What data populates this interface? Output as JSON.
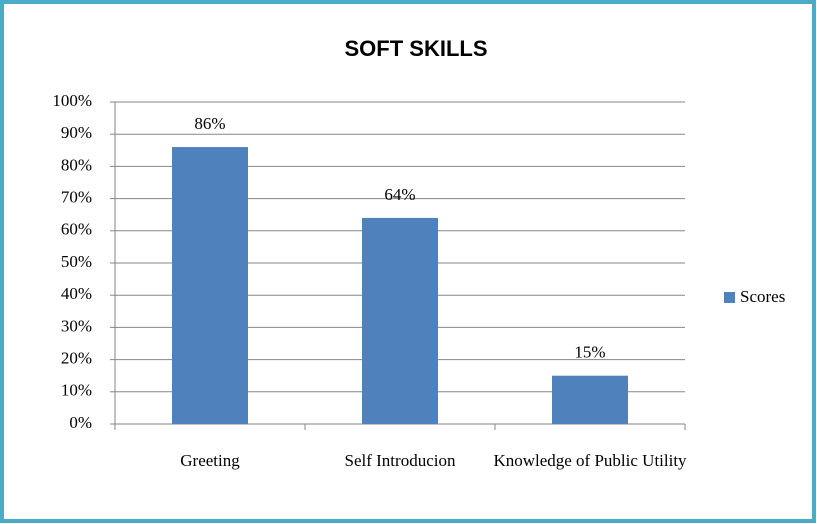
{
  "chart_data": {
    "type": "bar",
    "title": "SOFT SKILLS",
    "categories": [
      "Greeting",
      "Self Introducion",
      "Knowledge of Public Utility"
    ],
    "series": [
      {
        "name": "Scores",
        "color": "#4f81bd",
        "values": [
          86,
          64,
          15
        ],
        "value_labels": [
          "86%",
          "64%",
          "15%"
        ]
      }
    ],
    "ylim": [
      0,
      100
    ],
    "yticks": [
      {
        "value": 0,
        "label": "0%"
      },
      {
        "value": 10,
        "label": "10%"
      },
      {
        "value": 20,
        "label": "20%"
      },
      {
        "value": 30,
        "label": "30%"
      },
      {
        "value": 40,
        "label": "40%"
      },
      {
        "value": 50,
        "label": "50%"
      },
      {
        "value": 60,
        "label": "60%"
      },
      {
        "value": 70,
        "label": "70%"
      },
      {
        "value": 80,
        "label": "80%"
      },
      {
        "value": 90,
        "label": "90%"
      },
      {
        "value": 100,
        "label": "100%"
      }
    ],
    "grid": true,
    "legend": "right"
  }
}
